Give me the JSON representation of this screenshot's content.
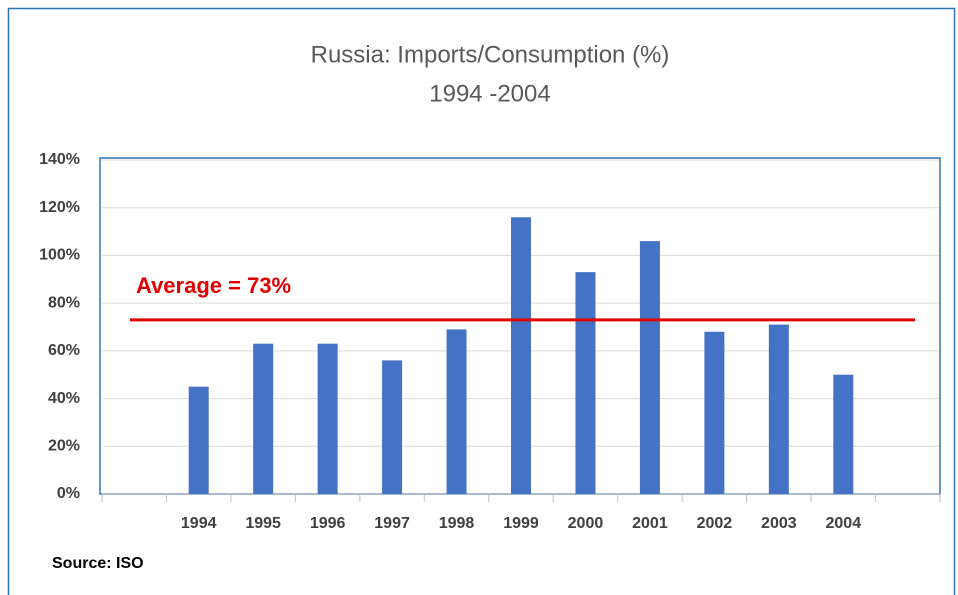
{
  "chart_data": {
    "type": "bar",
    "title": [
      "Russia: Imports/Consumption (%)",
      "1994 -2004"
    ],
    "categories": [
      null,
      "1994",
      "1995",
      "1996",
      "1997",
      "1998",
      "1999",
      "2000",
      "2001",
      "2002",
      "2003",
      "2004",
      null
    ],
    "values": [
      null,
      45,
      63,
      63,
      56,
      69,
      116,
      93,
      106,
      68,
      71,
      50,
      null
    ],
    "color": "#4472c4",
    "ylim": [
      0,
      140
    ],
    "yticks": [
      {
        "value": 0,
        "label": "0%"
      },
      {
        "value": 20,
        "label": "20%"
      },
      {
        "value": 40,
        "label": "40%"
      },
      {
        "value": 60,
        "label": "60%"
      },
      {
        "value": 80,
        "label": "80%"
      },
      {
        "value": 100,
        "label": "100%"
      },
      {
        "value": 120,
        "label": "120%"
      },
      {
        "value": 140,
        "label": "140%"
      }
    ],
    "grid": true,
    "average": {
      "value": 73,
      "label": "Average = 73%",
      "color": "#e00000"
    },
    "source": "Source: ISO"
  }
}
